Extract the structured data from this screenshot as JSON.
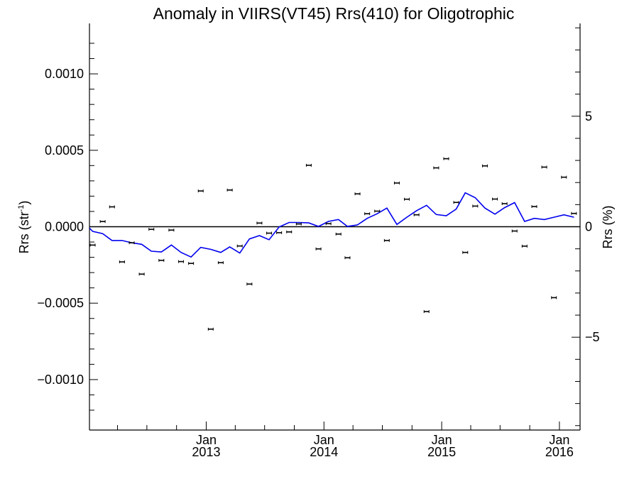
{
  "chart_data": {
    "type": "scatter",
    "title": "Anomaly in VIIRS(VT45) Rrs(410) for Oligotrophic",
    "ylabel_left": {
      "base": "Rrs (str",
      "sup": "-1",
      "close": ")"
    },
    "ylabel_right": "Rrs (%)",
    "x_range": [
      "2012-01-05",
      "2016-03-05"
    ],
    "ylim_left": [
      -0.00133,
      0.00133
    ],
    "ylim_right": [
      -9.2,
      9.2
    ],
    "left_ticks": [
      {
        "value": 0.001,
        "label": "0.0010"
      },
      {
        "value": 0.0005,
        "label": "0.0005"
      },
      {
        "value": 0.0,
        "label": "0.0000"
      },
      {
        "value": -0.0005,
        "label": "−0.0005"
      },
      {
        "value": -0.001,
        "label": "−0.0010"
      }
    ],
    "right_ticks": [
      {
        "value": 5,
        "label": "5"
      },
      {
        "value": 0,
        "label": "0"
      },
      {
        "value": -5,
        "label": "−5"
      }
    ],
    "x_ticks": [
      {
        "date": "2013-01-01",
        "month": "Jan",
        "year": "2013"
      },
      {
        "date": "2014-01-01",
        "month": "Jan",
        "year": "2014"
      },
      {
        "date": "2015-01-01",
        "month": "Jan",
        "year": "2015"
      },
      {
        "date": "2016-01-01",
        "month": "Jan",
        "year": "2016"
      }
    ],
    "zero_line": true,
    "grid": false,
    "series": [
      {
        "style": "points-with-error-bars",
        "color": "#000000",
        "axis": "left",
        "points": [
          {
            "x": "2012-01-15",
            "y": -0.00012
          },
          {
            "x": "2012-02-15",
            "y": 3.4e-05
          },
          {
            "x": "2012-03-15",
            "y": 0.00013
          },
          {
            "x": "2012-04-15",
            "y": -0.00023
          },
          {
            "x": "2012-05-15",
            "y": -0.000105
          },
          {
            "x": "2012-06-15",
            "y": -0.00031
          },
          {
            "x": "2012-07-15",
            "y": -1.7e-05
          },
          {
            "x": "2012-08-15",
            "y": -0.00022
          },
          {
            "x": "2012-09-15",
            "y": -2.2e-05
          },
          {
            "x": "2012-10-15",
            "y": -0.000228
          },
          {
            "x": "2012-11-15",
            "y": -0.00024
          },
          {
            "x": "2012-12-15",
            "y": 0.000234
          },
          {
            "x": "2013-01-15",
            "y": -0.00067
          },
          {
            "x": "2013-02-15",
            "y": -0.000235
          },
          {
            "x": "2013-03-15",
            "y": 0.00024
          },
          {
            "x": "2013-04-15",
            "y": -0.000126
          },
          {
            "x": "2013-05-15",
            "y": -0.000375
          },
          {
            "x": "2013-06-15",
            "y": 2.4e-05
          },
          {
            "x": "2013-07-15",
            "y": -4.2e-05
          },
          {
            "x": "2013-08-15",
            "y": -3.9e-05
          },
          {
            "x": "2013-09-15",
            "y": -3.4e-05
          },
          {
            "x": "2013-10-15",
            "y": 1.8e-05
          },
          {
            "x": "2013-11-15",
            "y": 0.000402
          },
          {
            "x": "2013-12-15",
            "y": -0.000145
          },
          {
            "x": "2014-01-15",
            "y": 2e-05
          },
          {
            "x": "2014-02-15",
            "y": -4.8e-05
          },
          {
            "x": "2014-03-15",
            "y": -0.000203
          },
          {
            "x": "2014-04-15",
            "y": 0.000215
          },
          {
            "x": "2014-05-15",
            "y": 8.5e-05
          },
          {
            "x": "2014-06-15",
            "y": 0.000102
          },
          {
            "x": "2014-07-15",
            "y": -9e-05
          },
          {
            "x": "2014-08-15",
            "y": 0.000286
          },
          {
            "x": "2014-09-15",
            "y": 0.00018
          },
          {
            "x": "2014-10-15",
            "y": 7.8e-05
          },
          {
            "x": "2014-11-15",
            "y": -0.000555
          },
          {
            "x": "2014-12-15",
            "y": 0.000385
          },
          {
            "x": "2015-01-15",
            "y": 0.000445
          },
          {
            "x": "2015-02-15",
            "y": 0.000159
          },
          {
            "x": "2015-03-15",
            "y": -0.000168
          },
          {
            "x": "2015-04-15",
            "y": 0.000135
          },
          {
            "x": "2015-05-15",
            "y": 0.000398
          },
          {
            "x": "2015-06-15",
            "y": 0.000181
          },
          {
            "x": "2015-07-15",
            "y": 0.000151
          },
          {
            "x": "2015-08-15",
            "y": -2.8e-05
          },
          {
            "x": "2015-09-15",
            "y": -0.000127
          },
          {
            "x": "2015-10-15",
            "y": 0.000132
          },
          {
            "x": "2015-11-15",
            "y": 0.00039
          },
          {
            "x": "2015-12-15",
            "y": -0.000464
          },
          {
            "x": "2016-01-15",
            "y": 0.000324
          },
          {
            "x": "2016-02-15",
            "y": 8.7e-05
          }
        ]
      },
      {
        "style": "line",
        "color": "#0000ee",
        "axis": "left",
        "points": [
          {
            "x": "2012-01-01",
            "y": 0.0
          },
          {
            "x": "2012-01-15",
            "y": -3e-05
          },
          {
            "x": "2012-02-15",
            "y": -4.5e-05
          },
          {
            "x": "2012-03-15",
            "y": -9e-05
          },
          {
            "x": "2012-04-15",
            "y": -9e-05
          },
          {
            "x": "2012-05-15",
            "y": -0.000105
          },
          {
            "x": "2012-06-15",
            "y": -0.000115
          },
          {
            "x": "2012-07-15",
            "y": -0.00016
          },
          {
            "x": "2012-08-15",
            "y": -0.000165
          },
          {
            "x": "2012-09-15",
            "y": -0.00012
          },
          {
            "x": "2012-10-15",
            "y": -0.000168
          },
          {
            "x": "2012-11-15",
            "y": -0.000198
          },
          {
            "x": "2012-12-15",
            "y": -0.000135
          },
          {
            "x": "2013-01-15",
            "y": -0.000148
          },
          {
            "x": "2013-02-15",
            "y": -0.000168
          },
          {
            "x": "2013-03-15",
            "y": -0.000132
          },
          {
            "x": "2013-04-15",
            "y": -0.000172
          },
          {
            "x": "2013-05-15",
            "y": -8e-05
          },
          {
            "x": "2013-06-15",
            "y": -5.8e-05
          },
          {
            "x": "2013-07-15",
            "y": -8.5e-05
          },
          {
            "x": "2013-08-15",
            "y": -2e-06
          },
          {
            "x": "2013-09-15",
            "y": 2.8e-05
          },
          {
            "x": "2013-10-15",
            "y": 2.8e-05
          },
          {
            "x": "2013-11-15",
            "y": 2.5e-05
          },
          {
            "x": "2013-12-15",
            "y": 2e-06
          },
          {
            "x": "2014-01-15",
            "y": 3.5e-05
          },
          {
            "x": "2014-02-15",
            "y": 4.7e-05
          },
          {
            "x": "2014-03-15",
            "y": 2e-06
          },
          {
            "x": "2014-04-15",
            "y": 1.2e-05
          },
          {
            "x": "2014-05-15",
            "y": 5.5e-05
          },
          {
            "x": "2014-06-15",
            "y": 8.5e-05
          },
          {
            "x": "2014-07-15",
            "y": 0.000122
          },
          {
            "x": "2014-08-15",
            "y": 1.5e-05
          },
          {
            "x": "2014-09-15",
            "y": 6.2e-05
          },
          {
            "x": "2014-10-15",
            "y": 0.000105
          },
          {
            "x": "2014-11-15",
            "y": 0.00014
          },
          {
            "x": "2014-12-15",
            "y": 8e-05
          },
          {
            "x": "2015-01-15",
            "y": 7.2e-05
          },
          {
            "x": "2015-02-15",
            "y": 0.000115
          },
          {
            "x": "2015-03-15",
            "y": 0.000222
          },
          {
            "x": "2015-04-15",
            "y": 0.00019
          },
          {
            "x": "2015-05-15",
            "y": 0.000122
          },
          {
            "x": "2015-06-15",
            "y": 8.2e-05
          },
          {
            "x": "2015-07-15",
            "y": 0.000125
          },
          {
            "x": "2015-08-15",
            "y": 0.000158
          },
          {
            "x": "2015-09-15",
            "y": 3.5e-05
          },
          {
            "x": "2015-10-15",
            "y": 5.5e-05
          },
          {
            "x": "2015-11-15",
            "y": 4.7e-05
          },
          {
            "x": "2015-12-15",
            "y": 6.2e-05
          },
          {
            "x": "2016-01-15",
            "y": 7.8e-05
          },
          {
            "x": "2016-02-15",
            "y": 6.2e-05
          }
        ]
      }
    ]
  }
}
